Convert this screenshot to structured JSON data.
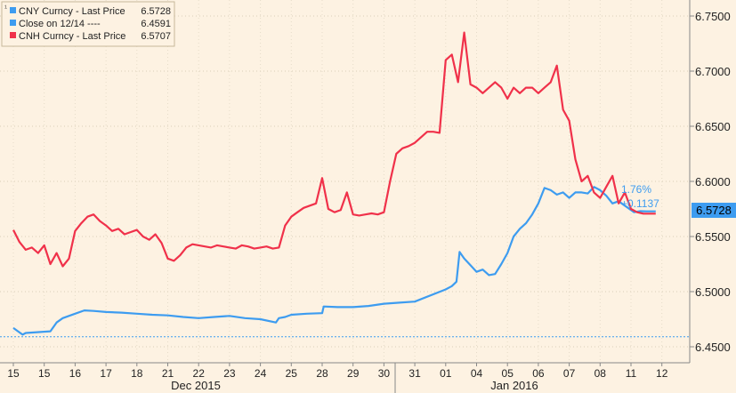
{
  "colors": {
    "background": "#fdf2e2",
    "cny": "#3d9cf0",
    "cnh": "#f0314a",
    "close_line": "#3d9cf0",
    "axis": "#888888",
    "tag_bg": "#3d9cf0"
  },
  "legend": {
    "items": [
      {
        "label": "CNY Curncy - Last Price",
        "value": "6.5728",
        "color": "#3d9cf0"
      },
      {
        "label": "Close on 12/14  ----",
        "value": "6.4591",
        "color": "#3d9cf0"
      },
      {
        "label": "CNH Curncy - Last Price",
        "value": "6.5707",
        "color": "#f0314a"
      }
    ]
  },
  "annotation": {
    "pct": "1.76%",
    "change": "+0.1137"
  },
  "price_tag": "6.5728",
  "chart_data": {
    "type": "line",
    "ylim": [
      6.44,
      6.77
    ],
    "yticks": [
      "6.4500",
      "6.5000",
      "6.5500",
      "6.6000",
      "6.6500",
      "6.7000",
      "6.7500"
    ],
    "xticks": [
      "15",
      "15",
      "16",
      "17",
      "18",
      "21",
      "22",
      "23",
      "24",
      "25",
      "28",
      "29",
      "30",
      "31",
      "01",
      "04",
      "05",
      "06",
      "07",
      "08",
      "11",
      "12"
    ],
    "month_labels": [
      "Dec 2015",
      "Jan 2016"
    ],
    "reference_line": {
      "label": "Close on 12/14",
      "value": 6.4591
    },
    "grid": true,
    "legend_position": "top-left",
    "series": [
      {
        "name": "CNY Curncy - Last Price",
        "color": "#3d9cf0",
        "x": [
          0,
          0.3,
          0.4,
          1.2,
          1.4,
          1.6,
          2,
          2.3,
          2.6,
          3,
          3.5,
          4,
          4.5,
          5,
          5.5,
          6,
          6.5,
          7,
          7.5,
          8,
          8.5,
          8.6,
          8.8,
          9,
          9.5,
          10,
          10.05,
          10.5,
          11,
          11.5,
          12,
          12.5,
          13,
          14,
          14.2,
          14.35,
          14.45,
          14.6,
          14.8,
          15,
          15.2,
          15.4,
          15.6,
          15.8,
          16,
          16.2,
          16.4,
          16.6,
          16.8,
          17,
          17.2,
          17.4,
          17.6,
          17.8,
          18,
          18.2,
          18.4,
          18.6,
          18.8,
          19,
          19.2,
          19.4,
          19.6,
          19.8,
          20,
          20.1,
          20.3,
          20.5,
          20.8
        ],
        "values": [
          6.467,
          6.461,
          6.4625,
          6.464,
          6.472,
          6.476,
          6.48,
          6.483,
          6.4825,
          6.4815,
          6.481,
          6.48,
          6.479,
          6.4785,
          6.477,
          6.476,
          6.477,
          6.478,
          6.476,
          6.475,
          6.472,
          6.476,
          6.477,
          6.479,
          6.48,
          6.4805,
          6.4865,
          6.486,
          6.486,
          6.487,
          6.489,
          6.49,
          6.491,
          6.502,
          6.505,
          6.509,
          6.536,
          6.53,
          6.524,
          6.518,
          6.52,
          6.515,
          6.516,
          6.525,
          6.535,
          6.55,
          6.557,
          6.562,
          6.57,
          6.58,
          6.594,
          6.592,
          6.588,
          6.59,
          6.585,
          6.59,
          6.59,
          6.589,
          6.595,
          6.592,
          6.587,
          6.58,
          6.582,
          6.578,
          6.574,
          6.572,
          6.573,
          6.5728,
          6.5728
        ]
      },
      {
        "name": "CNH Curncy - Last Price",
        "color": "#f0314a",
        "x": [
          0,
          0.2,
          0.4,
          0.6,
          0.8,
          1,
          1.2,
          1.4,
          1.6,
          1.8,
          2,
          2.2,
          2.4,
          2.6,
          2.8,
          3,
          3.2,
          3.4,
          3.6,
          3.8,
          4,
          4.2,
          4.4,
          4.6,
          4.8,
          5,
          5.2,
          5.4,
          5.6,
          5.8,
          6,
          6.2,
          6.4,
          6.6,
          6.8,
          7,
          7.2,
          7.4,
          7.6,
          7.8,
          8,
          8.2,
          8.4,
          8.6,
          8.8,
          9,
          9.2,
          9.4,
          9.6,
          9.8,
          10,
          10.2,
          10.4,
          10.6,
          10.8,
          11,
          11.2,
          11.4,
          11.6,
          11.8,
          12,
          12.2,
          12.4,
          12.6,
          12.8,
          13,
          13.2,
          13.4,
          13.6,
          13.8,
          14,
          14.2,
          14.4,
          14.6,
          14.8,
          15,
          15.2,
          15.4,
          15.6,
          15.8,
          16,
          16.2,
          16.4,
          16.6,
          16.8,
          17,
          17.2,
          17.4,
          17.6,
          17.8,
          18,
          18.2,
          18.4,
          18.6,
          18.8,
          19,
          19.2,
          19.4,
          19.6,
          19.8,
          20,
          20.2,
          20.4,
          20.6,
          20.8
        ],
        "values": [
          6.556,
          6.545,
          6.538,
          6.54,
          6.535,
          6.542,
          6.525,
          6.535,
          6.523,
          6.53,
          6.555,
          6.562,
          6.568,
          6.57,
          6.564,
          6.56,
          6.555,
          6.557,
          6.552,
          6.554,
          6.556,
          6.55,
          6.547,
          6.552,
          6.544,
          6.53,
          6.528,
          6.533,
          6.54,
          6.543,
          6.542,
          6.541,
          6.54,
          6.542,
          6.541,
          6.54,
          6.539,
          6.542,
          6.541,
          6.539,
          6.54,
          6.541,
          6.539,
          6.54,
          6.56,
          6.568,
          6.572,
          6.576,
          6.578,
          6.58,
          6.603,
          6.575,
          6.572,
          6.574,
          6.59,
          6.57,
          6.569,
          6.57,
          6.571,
          6.57,
          6.572,
          6.6,
          6.625,
          6.63,
          6.632,
          6.635,
          6.64,
          6.645,
          6.645,
          6.644,
          6.71,
          6.715,
          6.69,
          6.735,
          6.688,
          6.685,
          6.68,
          6.685,
          6.69,
          6.685,
          6.675,
          6.685,
          6.68,
          6.685,
          6.685,
          6.68,
          6.685,
          6.69,
          6.705,
          6.665,
          6.655,
          6.62,
          6.6,
          6.605,
          6.59,
          6.585,
          6.595,
          6.605,
          6.58,
          6.59,
          6.575,
          6.572,
          6.5707,
          6.5707,
          6.5707
        ]
      }
    ]
  }
}
